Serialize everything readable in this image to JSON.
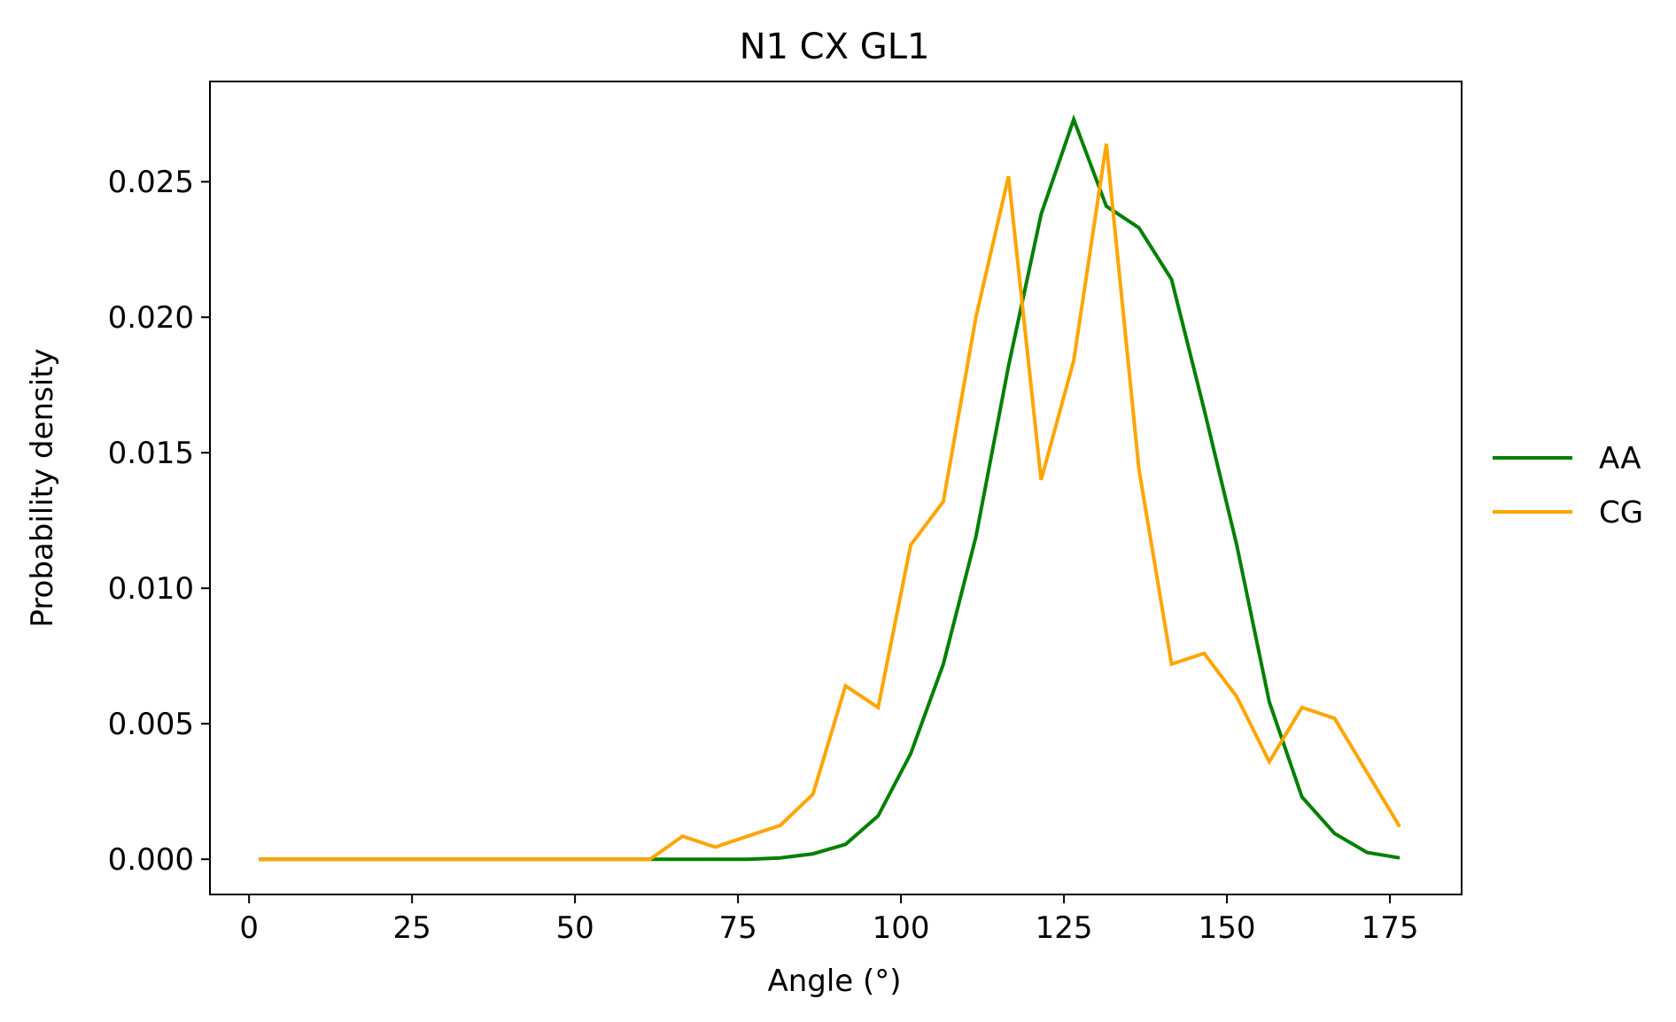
{
  "chart_data": {
    "type": "line",
    "title": "N1 CX GL1",
    "xlabel": "Angle (°)",
    "ylabel": "Probability density",
    "xlim": [
      -6,
      186
    ],
    "ylim": [
      -0.0013,
      0.0287
    ],
    "xticks": [
      0,
      25,
      50,
      75,
      100,
      125,
      150,
      175
    ],
    "xtick_labels": [
      "0",
      "25",
      "50",
      "75",
      "100",
      "125",
      "150",
      "175"
    ],
    "yticks": [
      0.0,
      0.005,
      0.01,
      0.015,
      0.02,
      0.025
    ],
    "ytick_labels": [
      "0.000",
      "0.005",
      "0.010",
      "0.015",
      "0.020",
      "0.025"
    ],
    "grid": false,
    "legend_position": "right",
    "x": [
      1.5,
      6.5,
      11.5,
      16.5,
      21.5,
      26.5,
      31.5,
      36.5,
      41.5,
      46.5,
      51.5,
      56.5,
      61.5,
      66.5,
      71.5,
      76.5,
      81.5,
      86.5,
      91.5,
      96.5,
      101.5,
      106.5,
      111.5,
      116.5,
      121.5,
      126.5,
      131.5,
      136.5,
      141.5,
      146.5,
      151.5,
      156.5,
      161.5,
      166.5,
      171.5,
      176.5
    ],
    "series": [
      {
        "name": "AA",
        "color": "#008000",
        "values": [
          0,
          0,
          0,
          0,
          0,
          0,
          0,
          0,
          0,
          0,
          0,
          0,
          0,
          0,
          0,
          0,
          5e-05,
          0.0002,
          0.00055,
          0.0016,
          0.0039,
          0.0072,
          0.0119,
          0.0182,
          0.0238,
          0.0273,
          0.0241,
          0.0233,
          0.0214,
          0.0166,
          0.0116,
          0.0058,
          0.0023,
          0.00095,
          0.00025,
          5e-05
        ]
      },
      {
        "name": "CG",
        "color": "#ffa500",
        "values": [
          0,
          0,
          0,
          0,
          0,
          0,
          0,
          0,
          0,
          0,
          0,
          0,
          0,
          0.00085,
          0.00045,
          0.00085,
          0.00125,
          0.0024,
          0.0064,
          0.0056,
          0.0116,
          0.0132,
          0.02,
          0.0252,
          0.014,
          0.0184,
          0.0264,
          0.0144,
          0.0072,
          0.0076,
          0.006,
          0.0036,
          0.0056,
          0.0052,
          0.0032,
          0.0012
        ]
      }
    ]
  }
}
